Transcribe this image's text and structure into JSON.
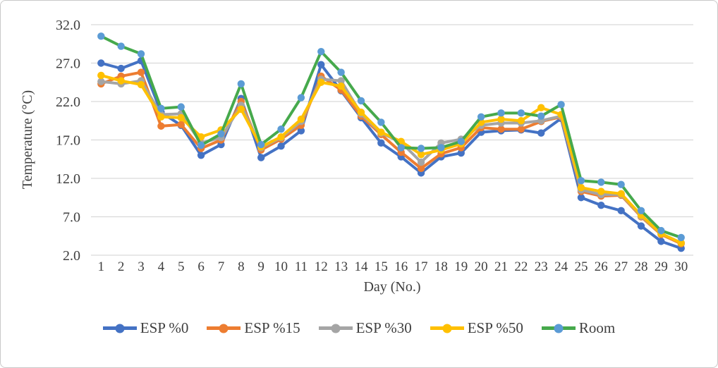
{
  "chart_data": {
    "type": "line",
    "title": "",
    "xlabel": "Day (No.)",
    "ylabel": "Temperature (°C)",
    "grid": true,
    "legend_position": "bottom",
    "ylim": [
      2,
      32
    ],
    "y_ticks": [
      {
        "label": "32.0",
        "value": 32
      },
      {
        "label": "27.0",
        "value": 27
      },
      {
        "label": "22.0",
        "value": 22
      },
      {
        "label": "17.0",
        "value": 17
      },
      {
        "label": "12.0",
        "value": 12
      },
      {
        "label": "7.0",
        "value": 7
      },
      {
        "label": "2.0",
        "value": 2
      }
    ],
    "x": [
      1,
      2,
      3,
      4,
      5,
      6,
      7,
      8,
      9,
      10,
      11,
      12,
      13,
      14,
      15,
      16,
      17,
      18,
      19,
      20,
      21,
      22,
      23,
      24,
      25,
      26,
      27,
      28,
      29,
      30
    ],
    "series": [
      {
        "name": "ESP %0",
        "color": "#4472C4",
        "marker_color": "#4472C4",
        "values": [
          27.0,
          26.3,
          27.3,
          20.6,
          18.9,
          15.0,
          16.4,
          22.4,
          14.7,
          16.2,
          18.2,
          26.8,
          23.4,
          19.9,
          16.6,
          14.8,
          12.7,
          14.8,
          15.3,
          18.0,
          18.2,
          18.3,
          17.9,
          19.8,
          9.5,
          8.5,
          7.8,
          5.8,
          3.8,
          2.9
        ]
      },
      {
        "name": "ESP %15",
        "color": "#ED7D31",
        "marker_color": "#ED7D31",
        "values": [
          24.3,
          25.3,
          25.8,
          18.8,
          19.0,
          15.9,
          17.0,
          22.0,
          15.7,
          17.1,
          18.9,
          25.3,
          23.5,
          20.1,
          17.7,
          15.4,
          13.3,
          15.2,
          16.0,
          18.6,
          18.4,
          18.4,
          19.4,
          20.0,
          10.3,
          9.7,
          9.8,
          7.0,
          4.7,
          3.5
        ]
      },
      {
        "name": "ESP %30",
        "color": "#A5A5A5",
        "marker_color": "#A5A5A5",
        "values": [
          24.6,
          24.3,
          24.7,
          20.3,
          20.4,
          16.6,
          17.3,
          21.5,
          16.0,
          17.3,
          19.4,
          24.9,
          24.7,
          20.4,
          17.9,
          16.7,
          14.1,
          16.6,
          17.1,
          18.9,
          19.2,
          19.2,
          19.5,
          20.1,
          10.5,
          9.9,
          9.9,
          7.1,
          4.8,
          3.6
        ]
      },
      {
        "name": "ESP %50",
        "color": "#FFC000",
        "marker_color": "#FFC000",
        "values": [
          25.4,
          24.7,
          24.2,
          20.0,
          19.9,
          17.4,
          18.3,
          21.0,
          16.1,
          17.4,
          19.7,
          24.5,
          24.0,
          20.6,
          18.0,
          16.8,
          15.1,
          15.7,
          16.5,
          19.3,
          19.7,
          19.5,
          21.2,
          20.3,
          10.8,
          10.3,
          10.0,
          7.2,
          4.8,
          3.6
        ]
      },
      {
        "name": "Room",
        "color": "#46A94C",
        "marker_color": "#5B9BD5",
        "values": [
          30.5,
          29.2,
          28.2,
          21.1,
          21.3,
          16.3,
          17.8,
          24.3,
          16.4,
          18.4,
          22.5,
          28.5,
          25.8,
          22.1,
          19.3,
          16.0,
          15.9,
          16.0,
          16.8,
          20.0,
          20.5,
          20.5,
          20.1,
          21.6,
          11.7,
          11.5,
          11.2,
          7.8,
          5.2,
          4.3
        ]
      }
    ]
  },
  "style": {
    "gridline_color": "#D9D9D9",
    "text_color": "#3f3f3f"
  }
}
